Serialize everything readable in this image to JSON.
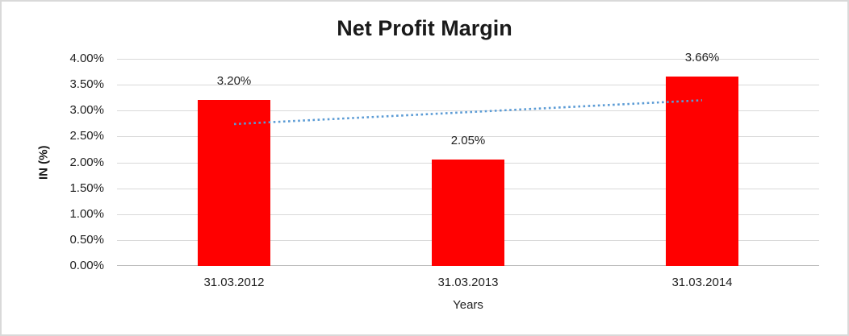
{
  "chart_data": {
    "type": "bar",
    "title": "Net Profit Margin",
    "xlabel": "Years",
    "ylabel": "IN (%)",
    "categories": [
      "31.03.2012",
      "31.03.2013",
      "31.03.2014"
    ],
    "values": [
      3.2,
      2.05,
      3.66
    ],
    "value_labels": [
      "3.20%",
      "2.05%",
      "3.66%"
    ],
    "ylim": [
      0,
      4
    ],
    "ytick_step": 0.5,
    "ytick_labels": [
      "0.00%",
      "0.50%",
      "1.00%",
      "1.50%",
      "2.00%",
      "2.50%",
      "3.00%",
      "3.50%",
      "4.00%"
    ],
    "grid": true,
    "legend": "none",
    "trendline": {
      "type": "linear",
      "style": "dotted",
      "start_category_index": 0,
      "end_category_index": 2,
      "start_value": 2.74,
      "end_value": 3.2
    },
    "colors": {
      "bar": "#ff0000",
      "gridline": "#d9d9d9",
      "axis_line": "#bfbfbf",
      "trendline": "#5b9bd5",
      "text": "#1f1f1f",
      "frame_border": "#d9d9d9"
    }
  }
}
